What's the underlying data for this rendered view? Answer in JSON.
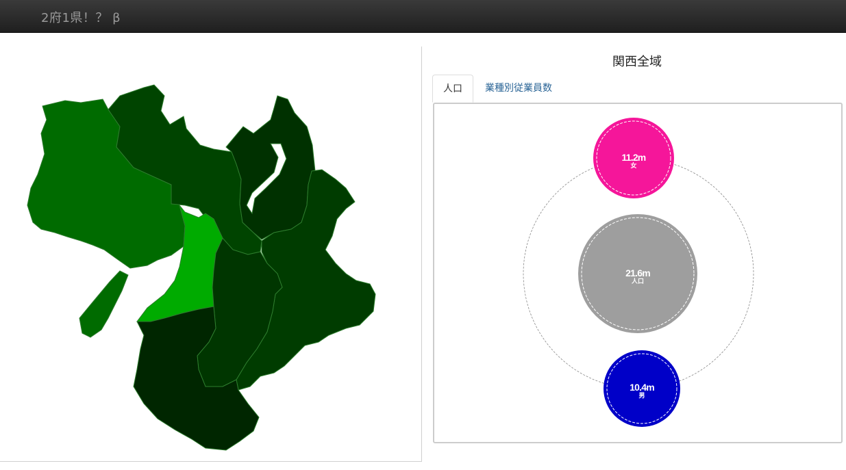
{
  "navbar": {
    "brand": "2府1県！？ β"
  },
  "region_title": "関西全域",
  "tabs": [
    {
      "label": "人口",
      "active": true
    },
    {
      "label": "業種別従業員数",
      "active": false
    }
  ],
  "map": {
    "prefectures": [
      {
        "name": "hyogo",
        "color": "#006b00"
      },
      {
        "name": "kyoto",
        "color": "#004400"
      },
      {
        "name": "shiga",
        "color": "#003100"
      },
      {
        "name": "osaka",
        "color": "#00ab00"
      },
      {
        "name": "nara",
        "color": "#003600"
      },
      {
        "name": "mie",
        "color": "#003c00"
      },
      {
        "name": "wakayama",
        "color": "#002600"
      }
    ],
    "border_color": "#2e7d2e"
  },
  "bubbles": [
    {
      "key": "female",
      "value": "11.2m",
      "label": "女",
      "color": "#f5169a"
    },
    {
      "key": "total",
      "value": "21.6m",
      "label": "人口",
      "color": "#9e9e9e"
    },
    {
      "key": "male",
      "value": "10.4m",
      "label": "男",
      "color": "#0000c8"
    }
  ]
}
